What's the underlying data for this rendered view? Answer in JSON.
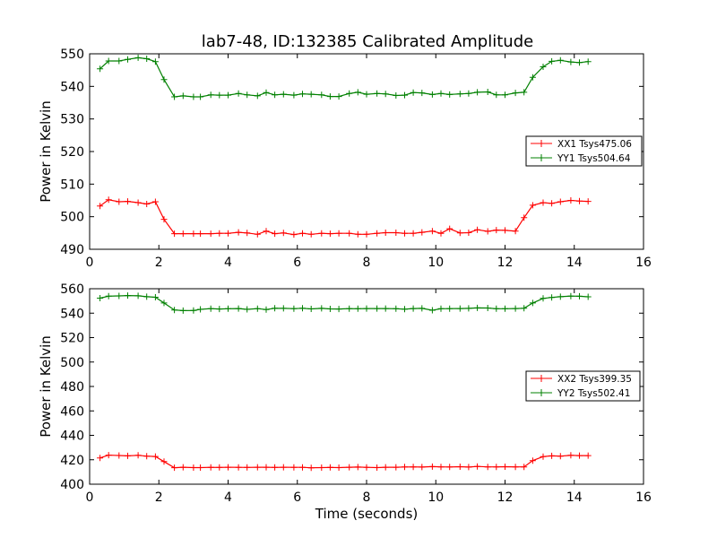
{
  "figure": {
    "title": "lab7-48, ID:132385 Calibrated Amplitude"
  },
  "chart_data": [
    {
      "type": "line",
      "title": "lab7-48, ID:132385 Calibrated Amplitude",
      "xlabel": "",
      "ylabel": "Power in Kelvin",
      "xlim": [
        0,
        16
      ],
      "ylim": [
        490,
        550
      ],
      "xticks": [
        0,
        2,
        4,
        6,
        8,
        10,
        12,
        14,
        16
      ],
      "yticks": [
        490,
        500,
        510,
        520,
        530,
        540,
        550
      ],
      "grid": false,
      "legend_position": "center-right",
      "x": [
        0.3,
        0.55,
        0.85,
        1.1,
        1.4,
        1.65,
        1.9,
        2.15,
        2.45,
        2.7,
        3.0,
        3.2,
        3.5,
        3.75,
        4.0,
        4.3,
        4.55,
        4.85,
        5.1,
        5.35,
        5.6,
        5.9,
        6.15,
        6.4,
        6.7,
        6.95,
        7.2,
        7.5,
        7.75,
        8.0,
        8.3,
        8.55,
        8.85,
        9.1,
        9.35,
        9.6,
        9.9,
        10.15,
        10.4,
        10.7,
        10.95,
        11.2,
        11.5,
        11.75,
        12.0,
        12.3,
        12.55,
        12.8,
        13.1,
        13.35,
        13.6,
        13.9,
        14.15,
        14.4
      ],
      "series": [
        {
          "name": "XX1 Tsys475.06",
          "color": "#ff0000",
          "values": [
            503.3,
            505.2,
            504.6,
            504.7,
            504.3,
            503.9,
            504.6,
            499.2,
            494.8,
            494.8,
            494.8,
            494.8,
            494.8,
            494.9,
            494.9,
            495.2,
            495.0,
            494.6,
            495.6,
            494.8,
            495.0,
            494.5,
            494.9,
            494.6,
            494.9,
            494.8,
            494.9,
            494.9,
            494.6,
            494.6,
            494.9,
            495.1,
            495.1,
            494.9,
            494.9,
            495.2,
            495.6,
            494.9,
            496.3,
            495.0,
            495.1,
            496.0,
            495.5,
            495.9,
            495.8,
            495.6,
            499.7,
            503.5,
            504.3,
            504.1,
            504.6,
            505.0,
            504.8,
            504.7
          ]
        },
        {
          "name": "YY1 Tsys504.64",
          "color": "#008000",
          "values": [
            545.4,
            547.8,
            547.8,
            548.3,
            548.8,
            548.5,
            547.6,
            542.1,
            536.8,
            537.1,
            536.8,
            536.8,
            537.4,
            537.3,
            537.3,
            537.8,
            537.4,
            537.1,
            538.1,
            537.4,
            537.6,
            537.3,
            537.7,
            537.6,
            537.4,
            536.9,
            536.9,
            537.8,
            538.2,
            537.6,
            537.8,
            537.7,
            537.2,
            537.3,
            538.1,
            538.0,
            537.5,
            537.8,
            537.5,
            537.7,
            537.8,
            538.2,
            538.3,
            537.4,
            537.4,
            538.0,
            538.2,
            542.8,
            546.0,
            547.7,
            548.0,
            547.5,
            547.3,
            547.6
          ]
        }
      ]
    },
    {
      "type": "line",
      "title": "",
      "xlabel": "Time (seconds)",
      "ylabel": "Power in Kelvin",
      "xlim": [
        0,
        16
      ],
      "ylim": [
        400,
        560
      ],
      "xticks": [
        0,
        2,
        4,
        6,
        8,
        10,
        12,
        14,
        16
      ],
      "yticks": [
        400,
        420,
        440,
        460,
        480,
        500,
        520,
        540,
        560
      ],
      "grid": false,
      "legend_position": "center-right",
      "x": [
        0.3,
        0.55,
        0.85,
        1.1,
        1.4,
        1.65,
        1.9,
        2.15,
        2.45,
        2.7,
        3.0,
        3.2,
        3.5,
        3.75,
        4.0,
        4.3,
        4.55,
        4.85,
        5.1,
        5.35,
        5.6,
        5.9,
        6.15,
        6.4,
        6.7,
        6.95,
        7.2,
        7.5,
        7.75,
        8.0,
        8.3,
        8.55,
        8.85,
        9.1,
        9.35,
        9.6,
        9.9,
        10.15,
        10.4,
        10.7,
        10.95,
        11.2,
        11.5,
        11.75,
        12.0,
        12.3,
        12.55,
        12.8,
        13.1,
        13.35,
        13.6,
        13.9,
        14.15,
        14.4
      ],
      "series": [
        {
          "name": "XX2 Tsys399.35",
          "color": "#ff0000",
          "values": [
            421.5,
            423.8,
            423.5,
            423.2,
            423.6,
            423.0,
            422.7,
            418.5,
            413.5,
            413.9,
            413.6,
            413.6,
            413.8,
            413.7,
            413.9,
            413.8,
            413.7,
            413.9,
            413.9,
            413.7,
            413.9,
            413.8,
            413.8,
            413.4,
            413.6,
            413.7,
            413.6,
            413.9,
            414.0,
            413.8,
            413.6,
            413.9,
            413.9,
            414.1,
            414.2,
            414.0,
            414.4,
            414.2,
            414.1,
            414.3,
            414.0,
            414.5,
            414.2,
            414.2,
            414.3,
            414.2,
            414.2,
            419.3,
            422.6,
            423.2,
            423.0,
            423.6,
            423.4,
            423.4
          ]
        },
        {
          "name": "YY2 Tsys502.41",
          "color": "#008000",
          "values": [
            552.3,
            553.9,
            554.1,
            554.4,
            554.2,
            553.5,
            553.0,
            548.3,
            542.6,
            542.1,
            542.2,
            543.1,
            543.7,
            543.4,
            543.6,
            543.8,
            543.1,
            543.7,
            543.0,
            544.0,
            543.9,
            543.7,
            544.0,
            543.5,
            543.9,
            543.5,
            543.4,
            543.7,
            543.6,
            543.8,
            543.8,
            543.8,
            543.6,
            543.3,
            543.8,
            543.9,
            542.4,
            543.6,
            543.7,
            543.8,
            543.9,
            544.3,
            544.2,
            543.6,
            543.6,
            543.8,
            544.0,
            548.3,
            552.1,
            552.9,
            553.5,
            554.0,
            553.8,
            553.4
          ]
        }
      ]
    }
  ]
}
